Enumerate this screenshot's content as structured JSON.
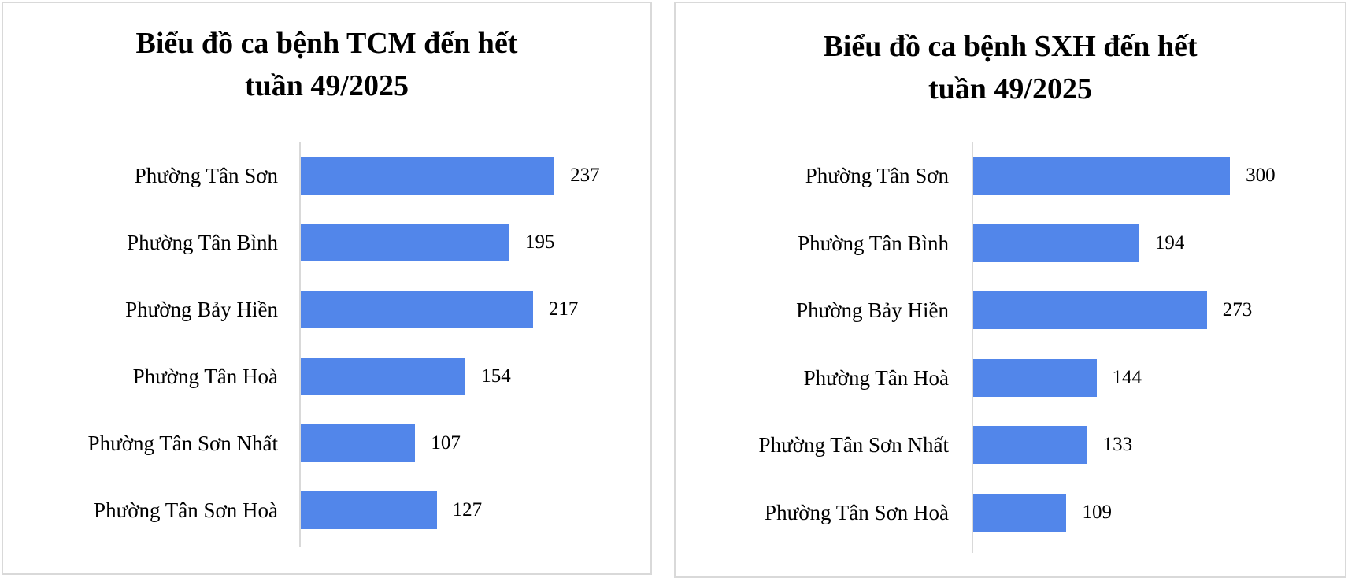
{
  "chart_data": [
    {
      "type": "bar",
      "orientation": "horizontal",
      "title": "Biểu đồ ca bệnh TCM đến hết tuần 49/2025",
      "title_lines": [
        "Biểu đồ ca bệnh TCM đến hết",
        "tuần 49/2025"
      ],
      "categories": [
        "Phường Tân Sơn",
        "Phường Tân Bình",
        "Phường Bảy Hiền",
        "Phường Tân Hoà",
        "Phường Tân Sơn Nhất",
        "Phường Tân Sơn Hoà"
      ],
      "values": [
        237,
        195,
        217,
        154,
        107,
        127
      ],
      "value_labels": [
        "237",
        "195",
        "217",
        "154",
        "107",
        "127"
      ],
      "xlim": [
        0,
        300
      ],
      "grid": false,
      "data_labels": true,
      "bar_color": "#5286ea"
    },
    {
      "type": "bar",
      "orientation": "horizontal",
      "title": "Biểu đồ ca bệnh SXH đến hết tuần 49/2025",
      "title_lines": [
        "Biểu đồ ca bệnh SXH đến hết",
        "tuần 49/2025"
      ],
      "categories": [
        "Phường Tân Sơn",
        "Phường Tân Bình",
        "Phường Bảy Hiền",
        "Phường Tân Hoà",
        "Phường Tân Sơn Nhất",
        "Phường Tân Sơn Hoà"
      ],
      "values": [
        300,
        194,
        273,
        144,
        133,
        109
      ],
      "value_labels": [
        "300",
        "194",
        "273",
        "144",
        "133",
        "109"
      ],
      "xlim": [
        0,
        400
      ],
      "grid": false,
      "data_labels": true,
      "bar_color": "#5286ea"
    }
  ]
}
